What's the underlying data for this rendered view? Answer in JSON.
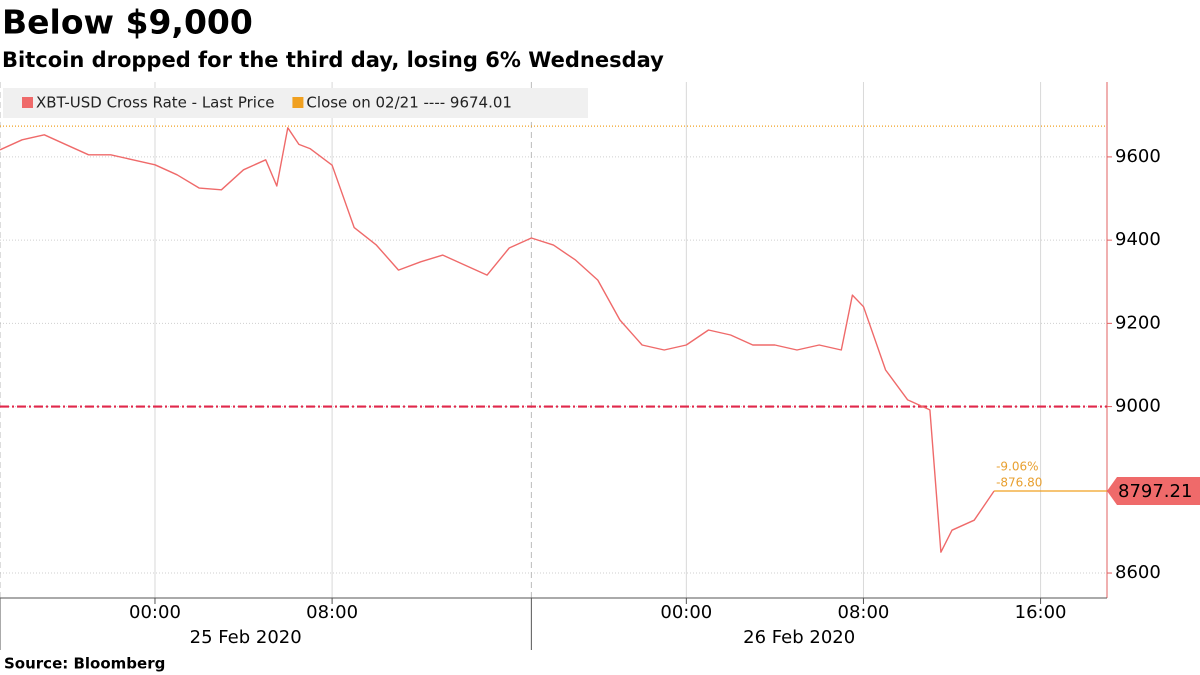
{
  "chart_data": {
    "type": "line",
    "title": "Below $9,000",
    "subtitle": "Bitcoin dropped for the third day, losing 6% Wednesday",
    "source": "Source:  Bloomberg",
    "x": [
      "2020-02-24 17:00",
      "2020-02-24 18:00",
      "2020-02-24 19:00",
      "2020-02-24 20:00",
      "2020-02-24 21:00",
      "2020-02-24 22:00",
      "2020-02-24 23:00",
      "2020-02-25 00:00",
      "2020-02-25 01:00",
      "2020-02-25 02:00",
      "2020-02-25 03:00",
      "2020-02-25 04:00",
      "2020-02-25 05:00",
      "2020-02-25 05:30",
      "2020-02-25 06:00",
      "2020-02-25 06:30",
      "2020-02-25 07:00",
      "2020-02-25 08:00",
      "2020-02-25 09:00",
      "2020-02-25 10:00",
      "2020-02-25 11:00",
      "2020-02-25 12:00",
      "2020-02-25 13:00",
      "2020-02-25 14:00",
      "2020-02-25 15:00",
      "2020-02-25 16:00",
      "2020-02-25 17:00",
      "2020-02-25 18:00",
      "2020-02-25 19:00",
      "2020-02-25 20:00",
      "2020-02-25 21:00",
      "2020-02-25 22:00",
      "2020-02-25 23:00",
      "2020-02-26 00:00",
      "2020-02-26 01:00",
      "2020-02-26 02:00",
      "2020-02-26 03:00",
      "2020-02-26 04:00",
      "2020-02-26 05:00",
      "2020-02-26 06:00",
      "2020-02-26 07:00",
      "2020-02-26 07:30",
      "2020-02-26 08:00",
      "2020-02-26 09:00",
      "2020-02-26 10:00",
      "2020-02-26 11:00",
      "2020-02-26 11:30",
      "2020-02-26 12:00",
      "2020-02-26 13:00",
      "2020-02-26 13:54"
    ],
    "series": [
      {
        "name": "XBT-USD Cross Rate - Last Price",
        "color": "#ef6a6a",
        "values": [
          9617,
          9641,
          9653,
          9629,
          9605,
          9605,
          9593,
          9581,
          9557,
          9525,
          9521,
          9569,
          9593,
          9530,
          9670,
          9630,
          9620,
          9580,
          9430,
          9388,
          9328,
          9348,
          9364,
          9340,
          9316,
          9381,
          9405,
          9388,
          9352,
          9304,
          9208,
          9148,
          9136,
          9148,
          9184,
          9172,
          9148,
          9148,
          9136,
          9148,
          9136,
          9268,
          9240,
          9088,
          9016,
          8992,
          8650,
          8703,
          8727,
          8797.21
        ]
      }
    ],
    "reference_lines": [
      {
        "name": "Close on 02/21 ---- 9674.01",
        "value": 9674.01,
        "color": "#f0a020"
      },
      {
        "value": 9000,
        "color": "#e0284b"
      }
    ],
    "annotations": [
      "-9.06%",
      "-876.80"
    ],
    "annotation_color": "#e8a030",
    "xlim": [
      "2020-02-24 17:00",
      "2020-02-26 19:00"
    ],
    "xticks": [
      {
        "value": "2020-02-25 00:00",
        "label": "00:00"
      },
      {
        "value": "2020-02-25 08:00",
        "label": "08:00"
      },
      {
        "value": "2020-02-26 00:00",
        "label": "00:00"
      },
      {
        "value": "2020-02-26 08:00",
        "label": "08:00"
      },
      {
        "value": "2020-02-26 16:00",
        "label": "16:00"
      }
    ],
    "date_groups": [
      {
        "label": "25 Feb 2020",
        "start": "2020-02-24 17:00",
        "end": "2020-02-25 17:00"
      },
      {
        "label": "26 Feb 2020",
        "start": "2020-02-25 17:00",
        "end": "2020-02-26 19:00"
      }
    ],
    "ylim": [
      8540,
      9780
    ],
    "yticks": [
      8600,
      9000,
      9200,
      9400,
      9600
    ],
    "grid": true
  }
}
